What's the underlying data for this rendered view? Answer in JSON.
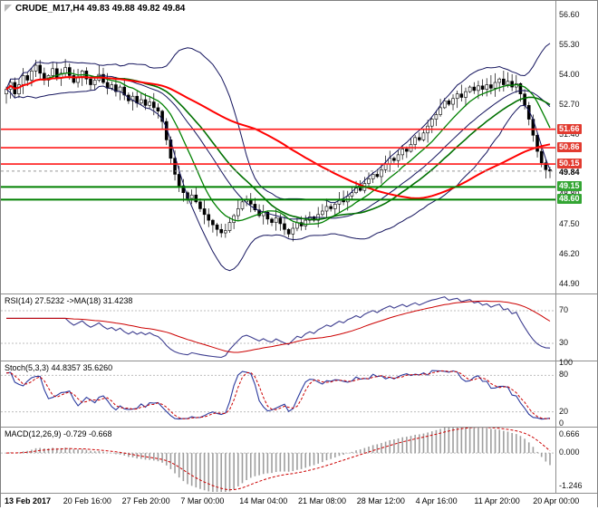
{
  "window": {
    "title": "CRUDE_M17,H4"
  },
  "header": {
    "symbol_info": "CRUDE_M17,H4 49.83 49.88 49.82 49.84"
  },
  "colors": {
    "background": "#ffffff",
    "pane_border": "#8e8e8e",
    "bull_candle": "#ffffff",
    "bear_candle": "#000000",
    "bollinger": "#15155e",
    "ma_red": "#ff0000",
    "ma_green_fast": "#008000",
    "ma_green_slow": "#007000",
    "level_red_line": "#ff1a1a",
    "level_green_line": "#008000",
    "badge_red": "#e23b30",
    "badge_green": "#33a533",
    "rsi_line": "#3d3d8f",
    "rsi_ma": "#cc0000",
    "stoch_main": "#2b3a9e",
    "stoch_signal": "#cc0000",
    "macd_hist": "#9e9e9e",
    "macd_signal": "#cc0000",
    "grid_dash": "#bdbdbd",
    "axis_text": "#1a1a1a"
  },
  "chart_data": [
    {
      "type": "candlestick",
      "name": "CRUDE_M17 H4 price",
      "title": "CRUDE_M17,H4 49.83 49.88 49.82 49.84",
      "ylim": [
        44.55,
        57.25
      ],
      "y_ticks": [
        56.6,
        55.3,
        54.0,
        52.7,
        51.4,
        50.1,
        48.8,
        47.5,
        46.2,
        44.9
      ],
      "levels": [
        {
          "value": 51.66,
          "color": "red"
        },
        {
          "value": 50.86,
          "color": "red"
        },
        {
          "value": 50.15,
          "color": "red"
        },
        {
          "value": 49.15,
          "color": "green"
        },
        {
          "value": 48.6,
          "color": "green"
        }
      ],
      "current_price": 49.84,
      "overlays": [
        "Bollinger Bands",
        "red slow MA",
        "green fast MA",
        "green slow MA",
        "horizontal support-resistance levels"
      ],
      "x_labels": [
        "13 Feb 2017",
        "20 Feb 16:00",
        "27 Feb 20:00",
        "7 Mar 00:00",
        "14 Mar 04:00",
        "21 Mar 08:00",
        "28 Mar 12:00",
        "4 Apr 16:00",
        "11 Apr 20:00",
        "20 Apr 00:00"
      ],
      "closes": [
        53.4,
        53.7,
        53.2,
        53.6,
        54.0,
        53.8,
        54.2,
        54.45,
        54.1,
        53.8,
        54.0,
        54.3,
        53.9,
        54.1,
        54.35,
        54.0,
        53.7,
        53.95,
        54.2,
        53.85,
        53.6,
        53.8,
        54.05,
        53.7,
        53.45,
        53.6,
        53.3,
        53.5,
        53.15,
        52.9,
        53.1,
        52.8,
        52.95,
        52.7,
        52.85,
        52.6,
        52.45,
        52.0,
        51.2,
        50.4,
        49.7,
        49.2,
        48.9,
        48.65,
        48.8,
        48.5,
        48.2,
        47.95,
        47.7,
        47.5,
        47.3,
        47.15,
        47.25,
        47.6,
        47.9,
        48.2,
        48.5,
        48.6,
        48.4,
        48.15,
        47.9,
        48.05,
        47.75,
        47.6,
        47.8,
        47.55,
        47.3,
        47.1,
        47.35,
        47.6,
        47.45,
        47.7,
        47.85,
        47.7,
        47.95,
        48.1,
        48.3,
        48.2,
        48.4,
        48.6,
        48.5,
        48.75,
        48.9,
        49.1,
        49.0,
        49.3,
        49.5,
        49.7,
        49.6,
        49.9,
        50.15,
        50.4,
        50.3,
        50.55,
        50.8,
        50.7,
        51.0,
        51.3,
        51.2,
        51.5,
        51.8,
        52.1,
        52.3,
        52.6,
        52.9,
        52.75,
        53.0,
        53.2,
        53.05,
        53.3,
        53.5,
        53.35,
        53.55,
        53.4,
        53.6,
        53.45,
        53.7,
        53.85,
        53.6,
        53.75,
        53.5,
        53.65,
        53.2,
        52.7,
        52.1,
        51.4,
        50.7,
        50.2,
        49.9,
        49.84
      ]
    },
    {
      "type": "line",
      "name": "RSI",
      "label": "RSI(14) 27.5232 ->MA(18) 31.4238",
      "last_values": {
        "rsi": 27.5232,
        "ma": 31.4238
      },
      "ticks": [
        70,
        30
      ],
      "levels": [
        70,
        30
      ],
      "ylim": [
        10,
        90
      ],
      "derived_from": "closes"
    },
    {
      "type": "line",
      "name": "Stochastic",
      "label": "Stoch(5,3,3) 44.8357 35.6260",
      "last_values": {
        "k": 44.8357,
        "d": 35.626
      },
      "ticks": [
        100,
        80,
        20,
        0
      ],
      "levels": [
        80,
        20
      ],
      "ylim": [
        -3,
        103
      ],
      "derived_from": "closes"
    },
    {
      "type": "histogram",
      "name": "MACD",
      "label": "MACD(12,26,9) -0.729 -0.668",
      "last_values": {
        "macd": -0.729,
        "signal": -0.668
      },
      "ticks": [
        "0.666",
        "0.000",
        "-1.246"
      ],
      "ylim": [
        -1.45,
        0.95
      ],
      "derived_from": "closes"
    }
  ]
}
